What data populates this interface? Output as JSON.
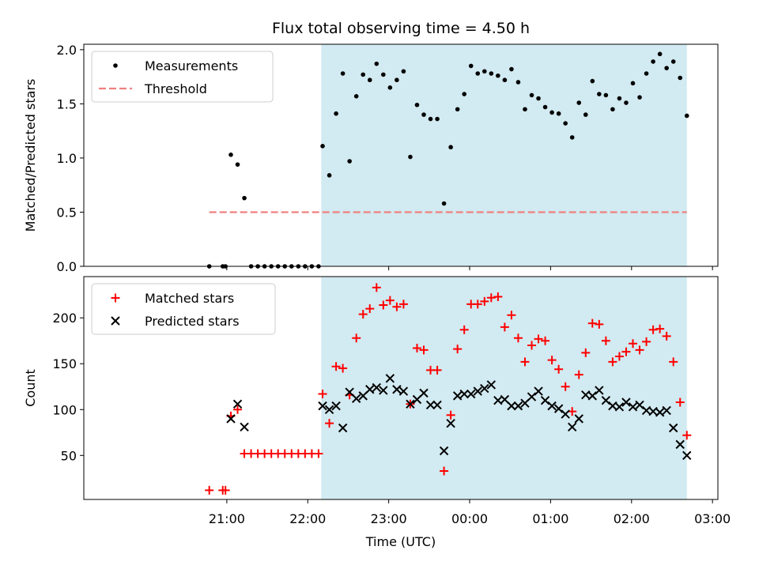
{
  "chart_data": {
    "title": "Flux total observing time = 4.50 h",
    "xlabel": "Time (UTC)",
    "x_ticks": [
      "21:00",
      "22:00",
      "23:00",
      "00:00",
      "01:00",
      "02:00",
      "03:00"
    ],
    "x_tick_values": [
      1260,
      1320,
      1380,
      1440,
      1500,
      1560,
      1620
    ],
    "xlim": [
      1154,
      1624
    ],
    "shaded_region": [
      1330,
      1601
    ],
    "shade_color": "#add8e6",
    "panels": [
      {
        "type": "scatter",
        "ylabel": "Matched/Predicted stars",
        "ylim": [
          0,
          2.05
        ],
        "y_ticks": [
          "0.0",
          "0.5",
          "1.0",
          "1.5",
          "2.0"
        ],
        "y_tick_values": [
          0,
          0.5,
          1.0,
          1.5,
          2.0
        ],
        "legend_position": "upper-left",
        "series": [
          {
            "name": "Measurements",
            "marker": "dot",
            "color": "#000000",
            "x": [
              1247,
              1257,
              1259,
              1263,
              1268,
              1273,
              1278,
              1283,
              1288,
              1293,
              1298,
              1303,
              1308,
              1313,
              1318,
              1323,
              1328,
              1331,
              1336,
              1341,
              1346,
              1351,
              1356,
              1361,
              1366,
              1371,
              1376,
              1381,
              1386,
              1391,
              1396,
              1401,
              1406,
              1411,
              1416,
              1421,
              1426,
              1431,
              1436,
              1441,
              1446,
              1451,
              1456,
              1461,
              1466,
              1471,
              1476,
              1481,
              1486,
              1491,
              1496,
              1501,
              1506,
              1511,
              1516,
              1521,
              1526,
              1531,
              1536,
              1541,
              1546,
              1551,
              1556,
              1561,
              1566,
              1571,
              1576,
              1581,
              1586,
              1591,
              1596,
              1601
            ],
            "y": [
              0,
              0,
              0,
              1.03,
              0.94,
              0.63,
              0,
              0,
              0,
              0,
              0,
              0,
              0,
              0,
              0,
              0,
              0,
              1.11,
              0.84,
              1.41,
              1.78,
              0.97,
              1.57,
              1.77,
              1.72,
              1.87,
              1.77,
              1.65,
              1.72,
              1.8,
              1.01,
              1.49,
              1.4,
              1.36,
              1.36,
              0.58,
              1.1,
              1.45,
              1.59,
              1.85,
              1.78,
              1.8,
              1.78,
              1.76,
              1.72,
              1.82,
              1.7,
              1.45,
              1.58,
              1.55,
              1.47,
              1.42,
              1.41,
              1.32,
              1.19,
              1.51,
              1.4,
              1.71,
              1.59,
              1.58,
              1.45,
              1.55,
              1.51,
              1.69,
              1.56,
              1.78,
              1.89,
              1.96,
              1.83,
              1.89,
              1.74,
              1.39
            ]
          },
          {
            "name": "Threshold",
            "marker": "dashed-line",
            "color": "#f08080",
            "x": [
              1247,
              1601
            ],
            "y": [
              0.5,
              0.5
            ]
          }
        ]
      },
      {
        "type": "scatter",
        "ylabel": "Count",
        "ylim": [
          2,
          245
        ],
        "y_ticks": [
          "50",
          "100",
          "150",
          "200"
        ],
        "y_tick_values": [
          50,
          100,
          150,
          200
        ],
        "legend_position": "upper-left",
        "series": [
          {
            "name": "Matched stars",
            "marker": "plus",
            "color": "#ff0000",
            "x": [
              1247,
              1257,
              1259,
              1263,
              1268,
              1273,
              1278,
              1283,
              1288,
              1293,
              1298,
              1303,
              1308,
              1313,
              1318,
              1323,
              1328,
              1331,
              1336,
              1341,
              1346,
              1351,
              1356,
              1361,
              1366,
              1371,
              1376,
              1381,
              1386,
              1391,
              1396,
              1401,
              1406,
              1411,
              1416,
              1421,
              1426,
              1431,
              1436,
              1441,
              1446,
              1451,
              1456,
              1461,
              1466,
              1471,
              1476,
              1481,
              1486,
              1491,
              1496,
              1501,
              1506,
              1511,
              1516,
              1521,
              1526,
              1531,
              1536,
              1541,
              1546,
              1551,
              1556,
              1561,
              1566,
              1571,
              1576,
              1581,
              1586,
              1591,
              1596,
              1601
            ],
            "y": [
              12,
              12,
              12,
              93,
              100,
              52,
              52,
              52,
              52,
              52,
              52,
              52,
              52,
              52,
              52,
              52,
              52,
              117,
              85,
              147,
              145,
              116,
              178,
              204,
              210,
              233,
              214,
              219,
              212,
              215,
              106,
              167,
              165,
              143,
              143,
              33,
              94,
              166,
              187,
              215,
              215,
              218,
              222,
              223,
              190,
              203,
              178,
              152,
              170,
              177,
              175,
              154,
              144,
              125,
              98,
              138,
              162,
              194,
              193,
              175,
              152,
              158,
              163,
              172,
              165,
              174,
              187,
              188,
              180,
              152,
              108,
              72
            ]
          },
          {
            "name": "Predicted stars",
            "marker": "x",
            "color": "#000000",
            "x": [
              1263,
              1268,
              1273,
              1331,
              1336,
              1341,
              1346,
              1351,
              1356,
              1361,
              1366,
              1371,
              1376,
              1381,
              1386,
              1391,
              1396,
              1401,
              1406,
              1411,
              1416,
              1421,
              1426,
              1431,
              1436,
              1441,
              1446,
              1451,
              1456,
              1461,
              1466,
              1471,
              1476,
              1481,
              1486,
              1491,
              1496,
              1501,
              1506,
              1511,
              1516,
              1521,
              1526,
              1531,
              1536,
              1541,
              1546,
              1551,
              1556,
              1561,
              1566,
              1571,
              1576,
              1581,
              1586,
              1591,
              1596,
              1601
            ],
            "y": [
              90,
              106,
              81,
              104,
              100,
              104,
              80,
              119,
              112,
              115,
              122,
              124,
              121,
              134,
              122,
              120,
              106,
              111,
              118,
              105,
              105,
              55,
              85,
              115,
              117,
              117,
              120,
              123,
              127,
              110,
              111,
              104,
              104,
              107,
              114,
              120,
              110,
              104,
              101,
              95,
              81,
              90,
              116,
              115,
              121,
              110,
              104,
              103,
              108,
              103,
              105,
              99,
              98,
              97,
              99,
              80,
              62,
              50
            ]
          }
        ]
      }
    ]
  }
}
